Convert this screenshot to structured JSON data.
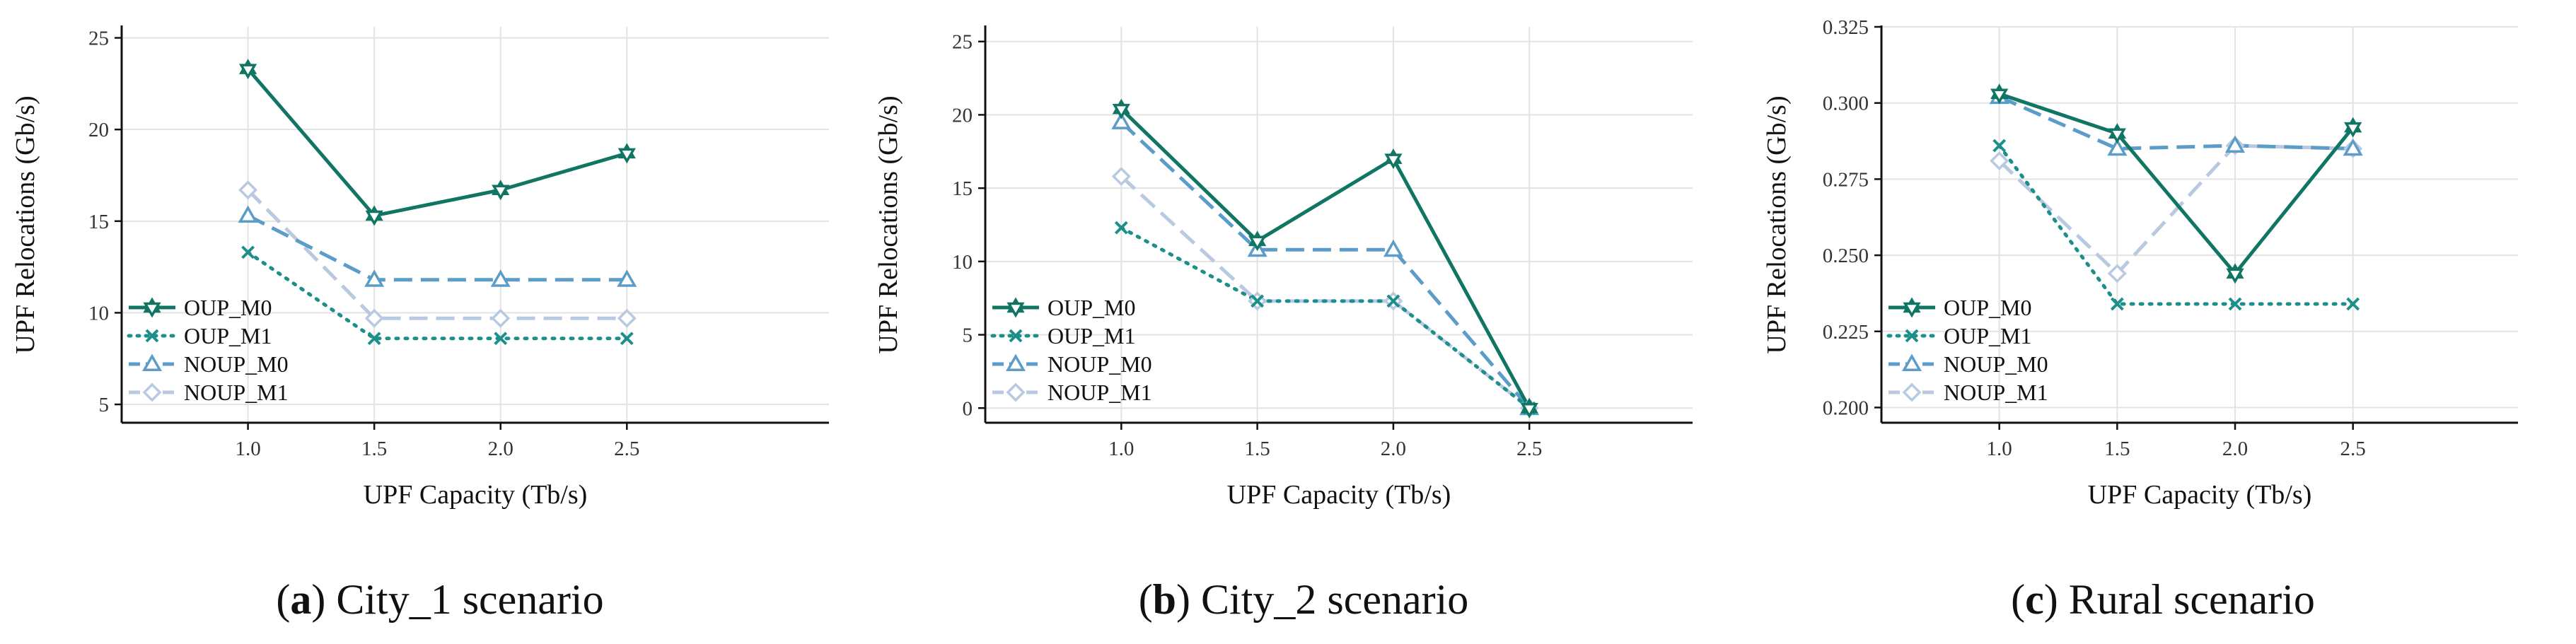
{
  "chart_data": [
    {
      "type": "line",
      "caption_letter": "a",
      "caption_text": "City_1 scenario",
      "title": "",
      "xlabel": "UPF Capacity (Tb/s)",
      "ylabel": "UPF Relocations (Gb/s)",
      "x": [
        1.0,
        1.5,
        2.0,
        2.5
      ],
      "x_tick_labels": [
        "1.0",
        "1.5",
        "2.0",
        "2.5"
      ],
      "xlim": [
        0.5,
        3.3
      ],
      "ylim": [
        4.0,
        25.6
      ],
      "y_ticks": [
        5,
        10,
        15,
        20,
        25
      ],
      "y_tick_labels": [
        "5",
        "10",
        "15",
        "20",
        "25"
      ],
      "grid": true,
      "legend_position": "bottom-left",
      "series": [
        {
          "name": "OUP_M0",
          "values": [
            23.3,
            15.3,
            16.7,
            18.7
          ]
        },
        {
          "name": "OUP_M1",
          "values": [
            13.3,
            8.6,
            8.6,
            8.6
          ]
        },
        {
          "name": "NOUP_M0",
          "values": [
            15.3,
            11.8,
            11.8,
            11.8
          ]
        },
        {
          "name": "NOUP_M1",
          "values": [
            16.7,
            9.7,
            9.7,
            9.7
          ]
        }
      ]
    },
    {
      "type": "line",
      "caption_letter": "b",
      "caption_text": "City_2 scenario",
      "title": "",
      "xlabel": "UPF Capacity (Tb/s)",
      "ylabel": "UPF Relocations (Gb/s)",
      "x": [
        1.0,
        1.5,
        2.0,
        2.5
      ],
      "x_tick_labels": [
        "1.0",
        "1.5",
        "2.0",
        "2.5"
      ],
      "xlim": [
        0.5,
        3.1
      ],
      "ylim": [
        -1.0,
        26.0
      ],
      "y_ticks": [
        0,
        5,
        10,
        15,
        20,
        25
      ],
      "y_tick_labels": [
        "0",
        "5",
        "10",
        "15",
        "20",
        "25"
      ],
      "grid": true,
      "legend_position": "bottom-left",
      "series": [
        {
          "name": "OUP_M0",
          "values": [
            20.4,
            11.4,
            17.0,
            0.0
          ]
        },
        {
          "name": "OUP_M1",
          "values": [
            12.3,
            7.3,
            7.3,
            0.0
          ]
        },
        {
          "name": "NOUP_M0",
          "values": [
            19.5,
            10.8,
            10.8,
            0.0
          ]
        },
        {
          "name": "NOUP_M1",
          "values": [
            15.8,
            7.3,
            7.3,
            0.0
          ]
        }
      ]
    },
    {
      "type": "line",
      "caption_letter": "c",
      "caption_text": "Rural scenario",
      "title": "",
      "xlabel": "UPF Capacity (Tb/s)",
      "ylabel": "UPF Relocations (Gb/s)",
      "x": [
        1.0,
        1.5,
        2.0,
        2.5
      ],
      "x_tick_labels": [
        "1.0",
        "1.5",
        "2.0",
        "2.5"
      ],
      "xlim": [
        0.5,
        3.2
      ],
      "ylim": [
        0.195,
        0.325
      ],
      "y_ticks": [
        0.2,
        0.225,
        0.25,
        0.275,
        0.3,
        0.325
      ],
      "y_tick_labels": [
        "0.200",
        "0.225",
        "0.250",
        "0.275",
        "0.300",
        "0.325"
      ],
      "grid": true,
      "legend_position": "bottom-left",
      "series": [
        {
          "name": "OUP_M0",
          "values": [
            0.303,
            0.29,
            0.244,
            0.292
          ]
        },
        {
          "name": "OUP_M1",
          "values": [
            0.286,
            0.234,
            0.234,
            0.234
          ]
        },
        {
          "name": "NOUP_M0",
          "values": [
            0.302,
            0.285,
            0.286,
            0.285
          ]
        },
        {
          "name": "NOUP_M1",
          "values": [
            0.281,
            0.244,
            0.286,
            0.285
          ]
        }
      ]
    }
  ],
  "series_styles": [
    {
      "color": "#107562",
      "dash": "solid",
      "marker": "star"
    },
    {
      "color": "#1b8f8a",
      "dash": "dotted",
      "marker": "x"
    },
    {
      "color": "#5b9cc8",
      "dash": "dashed",
      "marker": "triangle"
    },
    {
      "color": "#b9c9e2",
      "dash": "dashed",
      "marker": "diamond"
    }
  ],
  "colors": {
    "axis": "#111111",
    "grid": "#e3e3e3",
    "tick_text": "#333333"
  }
}
